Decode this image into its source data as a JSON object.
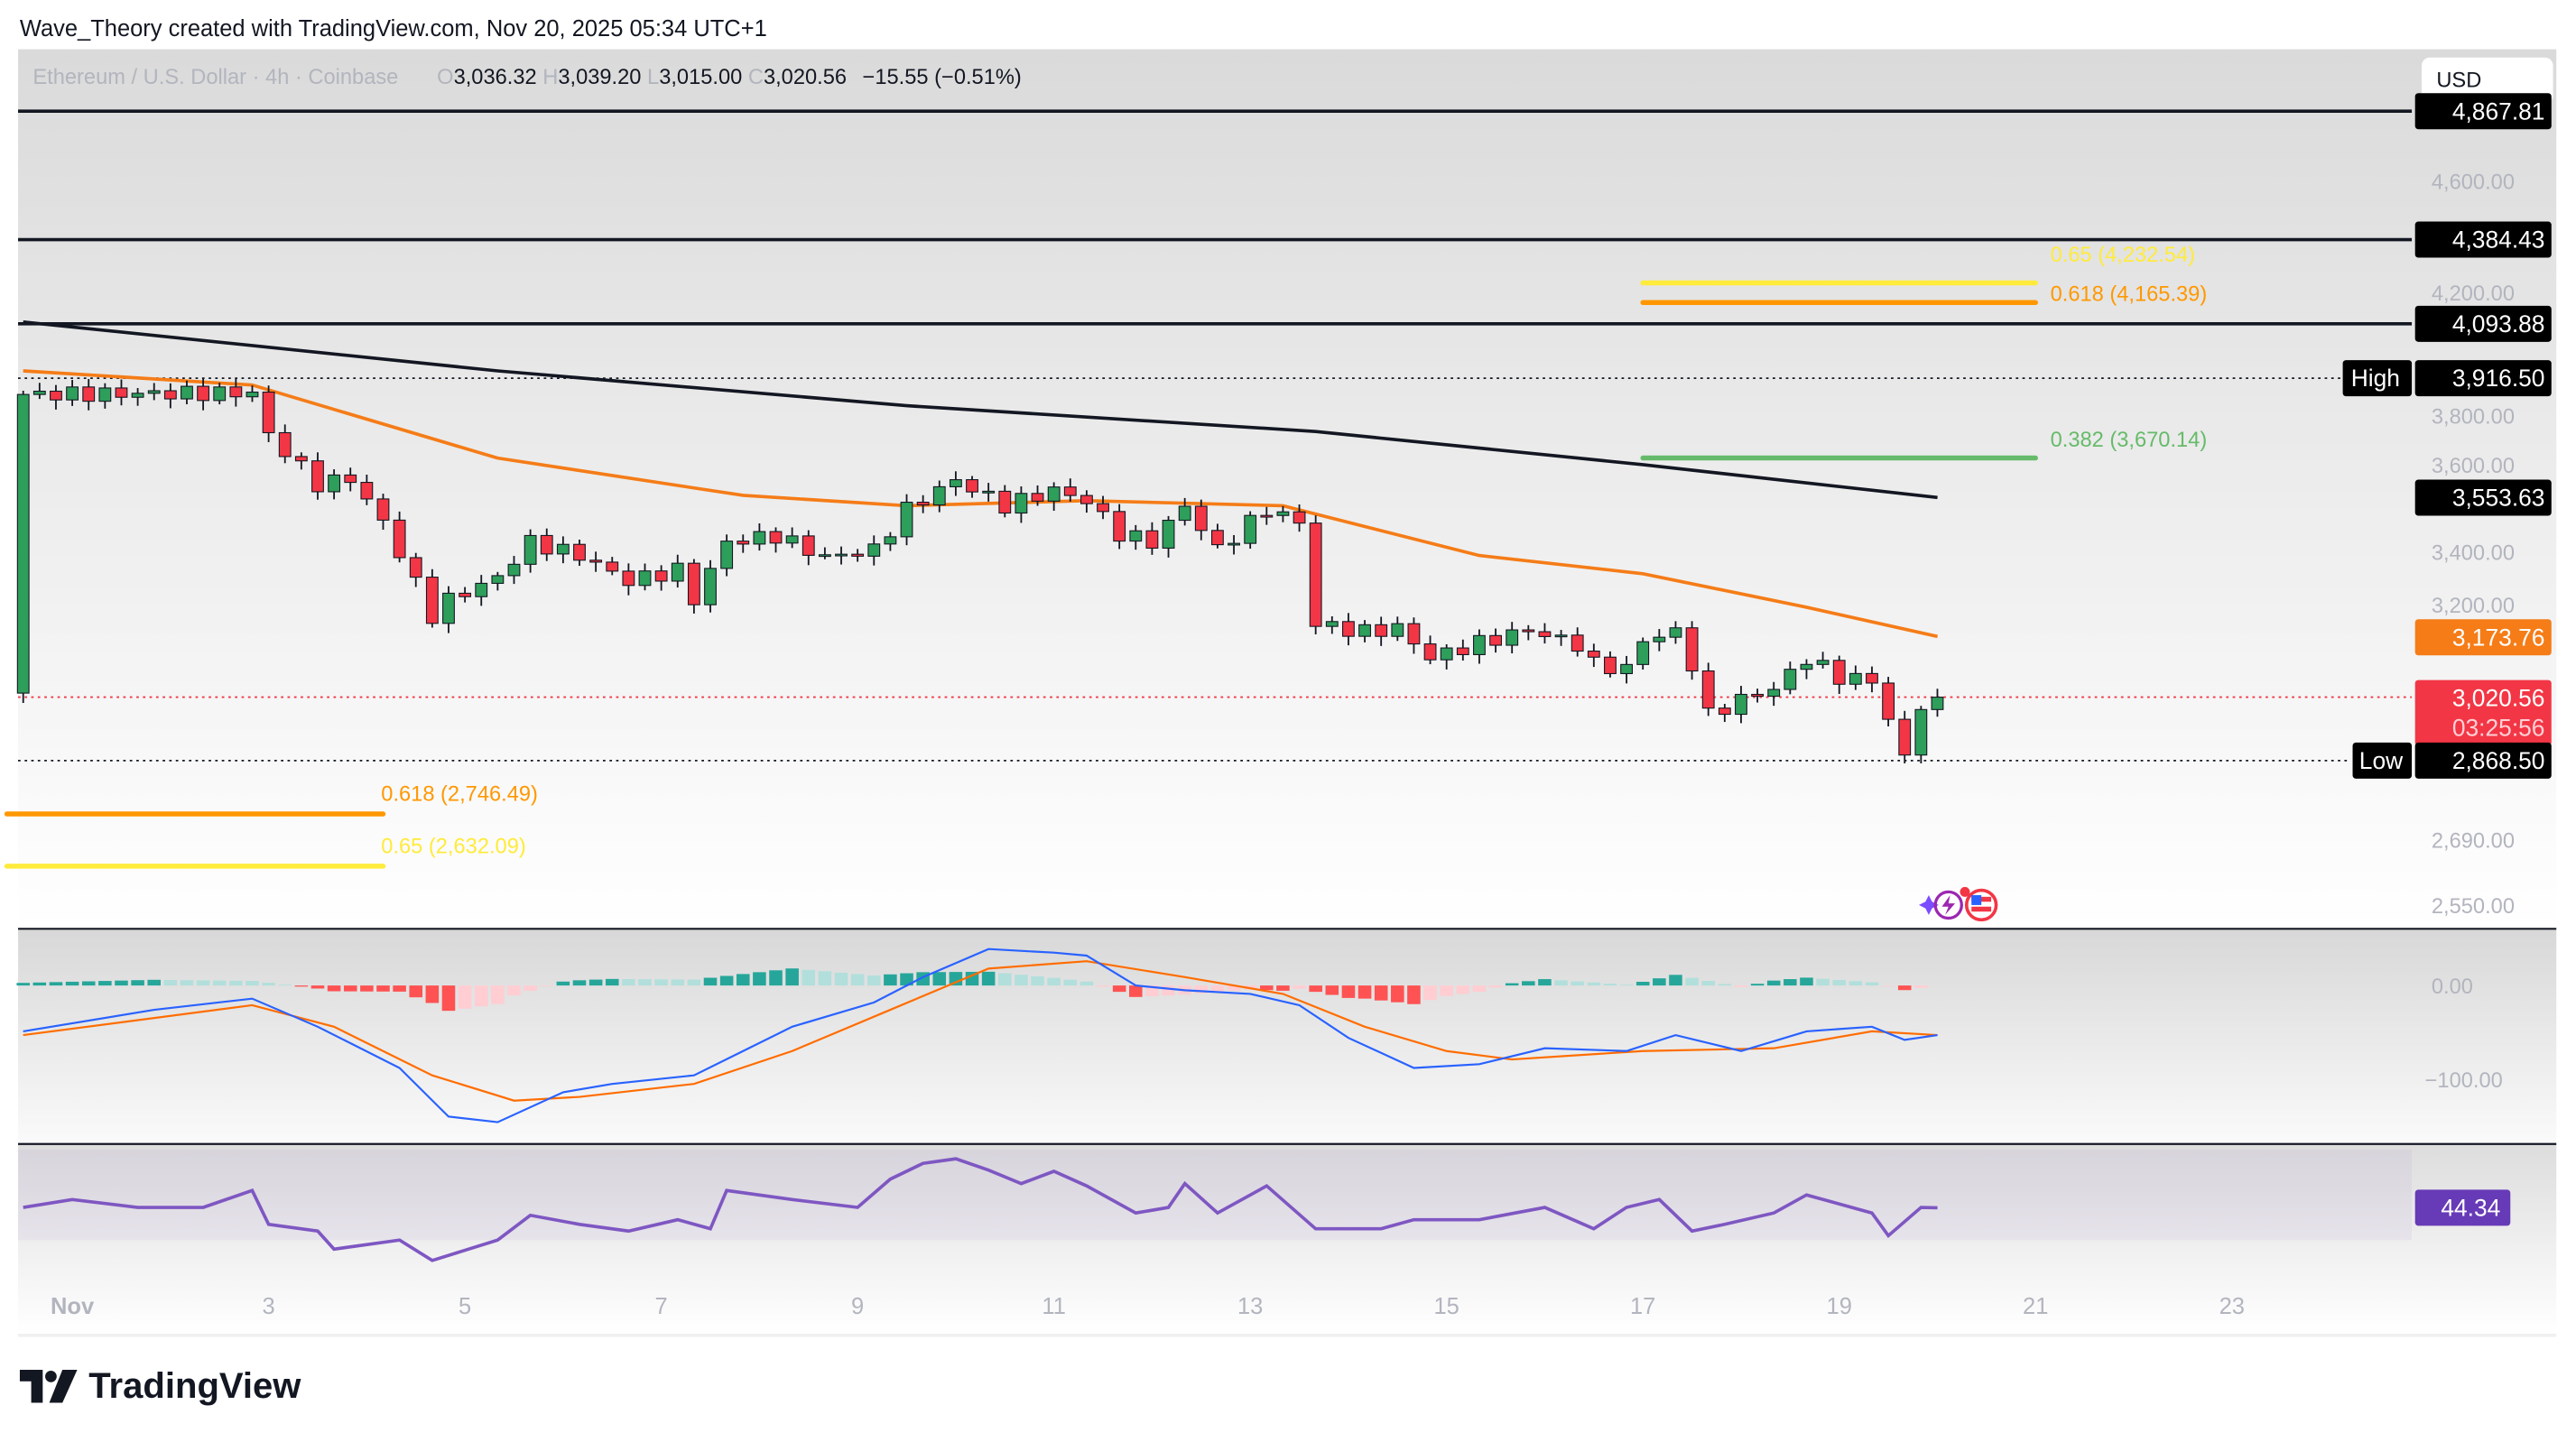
{
  "header": {
    "credit": "Wave_Theory created with TradingView.com, Nov 20, 2025 05:34 UTC+1"
  },
  "legend": {
    "symbol": "Ethereum / U.S. Dollar · 4h · Coinbase",
    "o_label": "O",
    "o": "3,036.32",
    "h_label": "H",
    "h": "3,039.20",
    "l_label": "L",
    "l": "3,015.00",
    "c_label": "C",
    "c": "3,020.56",
    "change": "−15.55 (−0.51%)"
  },
  "currency_button": "USD",
  "price_axis": {
    "scale": "log",
    "ticks": [
      "4,600.00",
      "4,200.00",
      "3,800.00",
      "3,600.00",
      "3,400.00",
      "3,200.00",
      "2,690.00",
      "2,550.00"
    ]
  },
  "levels": {
    "l1": {
      "value": "4,867.81",
      "price": 4867.81
    },
    "l2": {
      "value": "4,384.43",
      "price": 4384.43
    },
    "l3": {
      "value": "4,093.88",
      "price": 4093.88
    },
    "high": {
      "tag": "High",
      "value": "3,916.50",
      "price": 3916.5
    },
    "ma200": {
      "value": "3,553.63"
    },
    "ma50": {
      "value": "3,173.76"
    },
    "last": {
      "value": "3,020.56",
      "countdown": "03:25:56",
      "price": 3020.56
    },
    "low": {
      "tag": "Low",
      "value": "2,868.50",
      "price": 2868.5
    }
  },
  "fibs": [
    {
      "label": "0.65 (4,232.54)",
      "price": 4232.54,
      "from": "Nov 17 00:00",
      "to": "Nov 21 00:00",
      "color": "#ffeb3b"
    },
    {
      "label": "0.618 (4,165.39)",
      "price": 4165.39,
      "from": "Nov 17 00:00",
      "to": "Nov 21 00:00",
      "color": "#ff9800"
    },
    {
      "label": "0.382 (3,670.14)",
      "price": 3670.14,
      "from": "Nov 17 00:00",
      "to": "Nov 21 00:00",
      "color": "#66bb6a"
    },
    {
      "label": "0.618 (2,746.49)",
      "price": 2746.49,
      "from": "Oct 31 08:00",
      "to": "Nov 4 04:00",
      "color": "#ff9800"
    },
    {
      "label": "0.65 (2,632.09)",
      "price": 2632.09,
      "from": "Oct 31 08:00",
      "to": "Nov 4 04:00",
      "color": "#ffeb3b"
    }
  ],
  "macd_axis": {
    "ticks": [
      "0.00",
      "−100.00"
    ]
  },
  "rsi": {
    "value": "44.34",
    "color": "#673ab7"
  },
  "time_axis": {
    "labels": [
      [
        "Nov",
        1
      ],
      [
        "3",
        3
      ],
      [
        "5",
        5
      ],
      [
        "7",
        7
      ],
      [
        "9",
        9
      ],
      [
        "11",
        11
      ],
      [
        "13",
        13
      ],
      [
        "15",
        15
      ],
      [
        "17",
        17
      ],
      [
        "19",
        19
      ],
      [
        "21",
        21
      ],
      [
        "23",
        23
      ]
    ]
  },
  "colors": {
    "up": "#2e9e5b",
    "down": "#f23645",
    "ma50": "#f57c17",
    "ma200": "#131722",
    "macd": "#2962ff",
    "signal": "#ff6d00",
    "rsi": "#7e57c2"
  },
  "chart_data": {
    "type": "candlestick",
    "interval": "4h",
    "close_path": [
      [
        "Oct 31 12:00",
        3865
      ],
      [
        "Nov 2 20:00",
        3870
      ],
      [
        "Nov 3 00:00",
        3739
      ],
      [
        "Nov 3 12:00",
        3592
      ],
      [
        "Nov 3 20:00",
        3610
      ],
      [
        "Nov 4 04:00",
        3483
      ],
      [
        "Nov 4 16:00",
        3227
      ],
      [
        "Nov 4 20:00",
        3270
      ],
      [
        "Nov 5 08:00",
        3330
      ],
      [
        "Nov 5 16:00",
        3427
      ],
      [
        "Nov 6 04:00",
        3390
      ],
      [
        "Nov 6 16:00",
        3320
      ],
      [
        "Nov 7 04:00",
        3350
      ],
      [
        "Nov 7 08:00",
        3270
      ],
      [
        "Nov 7 16:00",
        3427
      ],
      [
        "Nov 8 04:00",
        3445
      ],
      [
        "Nov 8 16:00",
        3385
      ],
      [
        "Nov 9 04:00",
        3405
      ],
      [
        "Nov 9 12:00",
        3520
      ],
      [
        "Nov 10 00:00",
        3605
      ],
      [
        "Nov 10 12:00",
        3530
      ],
      [
        "Nov 11 00:00",
        3575
      ],
      [
        "Nov 11 08:00",
        3545
      ],
      [
        "Nov 11 16:00",
        3450
      ],
      [
        "Nov 12 00:00",
        3427
      ],
      [
        "Nov 12 08:00",
        3530
      ],
      [
        "Nov 12 16:00",
        3405
      ],
      [
        "Nov 13 04:00",
        3520
      ],
      [
        "Nov 13 12:00",
        3483
      ],
      [
        "Nov 13 16:00",
        3206
      ],
      [
        "Nov 14 04:00",
        3185
      ],
      [
        "Nov 14 12:00",
        3196
      ],
      [
        "Nov 14 20:00",
        3119
      ],
      [
        "Nov 15 08:00",
        3157
      ],
      [
        "Nov 15 20:00",
        3190
      ],
      [
        "Nov 16 08:00",
        3153
      ],
      [
        "Nov 16 12:00",
        3102
      ],
      [
        "Nov 16 20:00",
        3090
      ],
      [
        "Nov 17 00:00",
        3165
      ],
      [
        "Nov 17 08:00",
        3185
      ],
      [
        "Nov 17 12:00",
        3102
      ],
      [
        "Nov 17 16:00",
        2976
      ],
      [
        "Nov 18 00:00",
        3015
      ],
      [
        "Nov 18 08:00",
        3042
      ],
      [
        "Nov 18 16:00",
        3118
      ],
      [
        "Nov 19 00:00",
        3070
      ],
      [
        "Nov 19 08:00",
        3062
      ],
      [
        "Nov 19 12:00",
        2968
      ],
      [
        "Nov 19 16:00",
        2873
      ],
      [
        "Nov 19 20:00",
        3005
      ],
      [
        "Nov 20 00:00",
        3020.56
      ]
    ],
    "ma50": [
      [
        "Oct 31 12:00",
        3940
      ],
      [
        "Nov 2 20:00",
        3895
      ],
      [
        "Nov 5 08:00",
        3670
      ],
      [
        "Nov 7 20:00",
        3560
      ],
      [
        "Nov 9 12:00",
        3530
      ],
      [
        "Nov 11 08:00",
        3545
      ],
      [
        "Nov 13 08:00",
        3530
      ],
      [
        "Nov 15 08:00",
        3390
      ],
      [
        "Nov 17 00:00",
        3340
      ],
      [
        "Nov 18 16:00",
        3250
      ],
      [
        "Nov 20 00:00",
        3173.76
      ]
    ],
    "ma200": [
      [
        "Oct 31 12:00",
        4100
      ],
      [
        "Nov 5 08:00",
        3940
      ],
      [
        "Nov 9 12:00",
        3830
      ],
      [
        "Nov 13 16:00",
        3750
      ],
      [
        "Nov 17 00:00",
        3650
      ],
      [
        "Nov 20 00:00",
        3553.63
      ]
    ],
    "macd": [
      [
        "Oct 31 12:00",
        -49
      ],
      [
        "Nov 1 20:00",
        -26
      ],
      [
        "Nov 2 20:00",
        -14
      ],
      [
        "Nov 3 12:00",
        -44
      ],
      [
        "Nov 4 08:00",
        -88
      ],
      [
        "Nov 4 20:00",
        -140
      ],
      [
        "Nov 5 08:00",
        -146
      ],
      [
        "Nov 6 00:00",
        -114
      ],
      [
        "Nov 6 12:00",
        -105
      ],
      [
        "Nov 7 08:00",
        -96
      ],
      [
        "Nov 7 20:00",
        -70
      ],
      [
        "Nov 8 08:00",
        -44
      ],
      [
        "Nov 9 04:00",
        -18
      ],
      [
        "Nov 9 16:00",
        9
      ],
      [
        "Nov 10 08:00",
        39
      ],
      [
        "Nov 11 00:00",
        35
      ],
      [
        "Nov 11 08:00",
        32
      ],
      [
        "Nov 11 20:00",
        0
      ],
      [
        "Nov 12 08:00",
        -5
      ],
      [
        "Nov 13 00:00",
        -9
      ],
      [
        "Nov 13 12:00",
        -21
      ],
      [
        "Nov 14 00:00",
        -56
      ],
      [
        "Nov 14 16:00",
        -88
      ],
      [
        "Nov 15 08:00",
        -84
      ],
      [
        "Nov 16 00:00",
        -67
      ],
      [
        "Nov 16 20:00",
        -70
      ],
      [
        "Nov 17 08:00",
        -53
      ],
      [
        "Nov 18 00:00",
        -70
      ],
      [
        "Nov 18 16:00",
        -49
      ],
      [
        "Nov 19 08:00",
        -44
      ],
      [
        "Nov 19 16:00",
        -58
      ],
      [
        "Nov 20 00:00",
        -53
      ]
    ],
    "signal": [
      [
        "Oct 31 12:00",
        -53
      ],
      [
        "Nov 2 20:00",
        -21
      ],
      [
        "Nov 3 16:00",
        -44
      ],
      [
        "Nov 4 16:00",
        -96
      ],
      [
        "Nov 5 12:00",
        -123
      ],
      [
        "Nov 6 04:00",
        -119
      ],
      [
        "Nov 7 08:00",
        -105
      ],
      [
        "Nov 8 08:00",
        -70
      ],
      [
        "Nov 9 08:00",
        -26
      ],
      [
        "Nov 10 08:00",
        18
      ],
      [
        "Nov 11 08:00",
        26
      ],
      [
        "Nov 12 08:00",
        9
      ],
      [
        "Nov 13 08:00",
        -9
      ],
      [
        "Nov 14 04:00",
        -44
      ],
      [
        "Nov 15 00:00",
        -70
      ],
      [
        "Nov 15 16:00",
        -79
      ],
      [
        "Nov 17 00:00",
        -70
      ],
      [
        "Nov 18 08:00",
        -67
      ],
      [
        "Nov 19 08:00",
        -49
      ],
      [
        "Nov 20 00:00",
        -53
      ]
    ],
    "rsi": [
      [
        "Oct 31 12:00",
        44.5
      ],
      [
        "Nov 1 00:00",
        48
      ],
      [
        "Nov 1 16:00",
        44.5
      ],
      [
        "Nov 2 08:00",
        44.5
      ],
      [
        "Nov 2 20:00",
        52
      ],
      [
        "Nov 3 00:00",
        37
      ],
      [
        "Nov 3 12:00",
        34
      ],
      [
        "Nov 3 16:00",
        26
      ],
      [
        "Nov 4 08:00",
        30
      ],
      [
        "Nov 4 16:00",
        21
      ],
      [
        "Nov 5 08:00",
        30
      ],
      [
        "Nov 5 16:00",
        41
      ],
      [
        "Nov 6 04:00",
        37
      ],
      [
        "Nov 6 16:00",
        34
      ],
      [
        "Nov 7 04:00",
        39
      ],
      [
        "Nov 7 12:00",
        35
      ],
      [
        "Nov 7 16:00",
        52
      ],
      [
        "Nov 8 08:00",
        48
      ],
      [
        "Nov 9 00:00",
        44.5
      ],
      [
        "Nov 9 08:00",
        57
      ],
      [
        "Nov 9 16:00",
        64
      ],
      [
        "Nov 10 00:00",
        66
      ],
      [
        "Nov 10 08:00",
        61
      ],
      [
        "Nov 10 16:00",
        55
      ],
      [
        "Nov 11 00:00",
        60.5
      ],
      [
        "Nov 11 08:00",
        54
      ],
      [
        "Nov 11 20:00",
        42
      ],
      [
        "Nov 12 04:00",
        44.5
      ],
      [
        "Nov 12 08:00",
        55
      ],
      [
        "Nov 12 16:00",
        42
      ],
      [
        "Nov 13 04:00",
        54
      ],
      [
        "Nov 13 16:00",
        35
      ],
      [
        "Nov 14 08:00",
        35
      ],
      [
        "Nov 14 16:00",
        39
      ],
      [
        "Nov 15 08:00",
        39
      ],
      [
        "Nov 16 00:00",
        44.5
      ],
      [
        "Nov 16 12:00",
        35
      ],
      [
        "Nov 16 20:00",
        44.5
      ],
      [
        "Nov 17 04:00",
        48
      ],
      [
        "Nov 17 12:00",
        34
      ],
      [
        "Nov 17 20:00",
        37
      ],
      [
        "Nov 18 08:00",
        42
      ],
      [
        "Nov 18 16:00",
        50
      ],
      [
        "Nov 19 08:00",
        42
      ],
      [
        "Nov 19 12:00",
        32
      ],
      [
        "Nov 19 20:00",
        44.5
      ],
      [
        "Nov 20 00:00",
        44.34
      ]
    ],
    "rsi_band": [
      30,
      70
    ]
  },
  "brand": {
    "logo_text": "TradingView"
  }
}
